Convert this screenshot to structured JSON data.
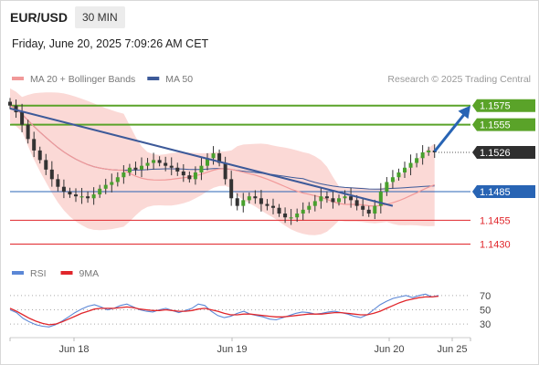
{
  "header": {
    "symbol": "EUR/USD",
    "interval": "30 MIN",
    "datetime": "Friday, June 20, 2025 7:09:26 AM CET"
  },
  "colors": {
    "ma20": "#f19999",
    "ma50": "#3d5a99",
    "band_fill": "#fbd9d6",
    "green": "#5aa329",
    "blue": "#2864b4",
    "red": "#e0262b",
    "rsi": "#5b87d6",
    "rsi_ma": "#e0262b",
    "candle": "#48a02d",
    "candle_dark": "#333333",
    "current": "#2f2f2f"
  },
  "chart_data": [
    {
      "type": "candlestick",
      "title": "",
      "legend": {
        "placement": "top-left",
        "items": [
          {
            "label": "MA 20 + Bollinger Bands",
            "color": "#f19999"
          },
          {
            "label": "MA 50",
            "color": "#3d5a99"
          }
        ]
      },
      "watermark": "Research © 2025 Trading Central",
      "x_ticks": [
        "Jun 18",
        "Jun 19",
        "Jun 20",
        "Jun 25"
      ],
      "ylim": [
        1.142,
        1.159
      ],
      "levels": [
        {
          "label": "1.1575",
          "value": 1.1575,
          "kind": "resistance",
          "color": "#5aa329"
        },
        {
          "label": "1.1555",
          "value": 1.1555,
          "kind": "resistance",
          "color": "#5aa329"
        },
        {
          "label": "1.1526",
          "value": 1.1526,
          "kind": "current",
          "color": "#2f2f2f"
        },
        {
          "label": "1.1485",
          "value": 1.1485,
          "kind": "pivot",
          "color": "#2864b4"
        },
        {
          "label": "1.1455",
          "value": 1.1455,
          "kind": "support",
          "color": "#e0262b"
        },
        {
          "label": "1.1430",
          "value": 1.143,
          "kind": "support",
          "color": "#e0262b"
        }
      ],
      "close_series": [
        1.1575,
        1.1568,
        1.1555,
        1.154,
        1.1528,
        1.1518,
        1.1508,
        1.1498,
        1.149,
        1.1485,
        1.1482,
        1.148,
        1.148,
        1.1478,
        1.1482,
        1.1488,
        1.1492,
        1.1495,
        1.15,
        1.1505,
        1.151,
        1.1508,
        1.1512,
        1.1515,
        1.1518,
        1.1515,
        1.1512,
        1.151,
        1.1506,
        1.1502,
        1.1498,
        1.1505,
        1.1512,
        1.152,
        1.1525,
        1.1515,
        1.1498,
        1.1478,
        1.147,
        1.1476,
        1.148,
        1.1478,
        1.1472,
        1.147,
        1.1468,
        1.1462,
        1.1458,
        1.1458,
        1.1462,
        1.1466,
        1.147,
        1.1475,
        1.148,
        1.1478,
        1.1474,
        1.1478,
        1.148,
        1.1476,
        1.147,
        1.1466,
        1.1462,
        1.147,
        1.1485,
        1.1495,
        1.15,
        1.1505,
        1.151,
        1.1515,
        1.152,
        1.1526,
        1.1528,
        1.1526
      ],
      "trendline": [
        {
          "series_index": 0,
          "value": 1.1572
        },
        {
          "series_index": 64,
          "value": 1.147
        }
      ],
      "forecast_arrow": [
        {
          "series_index": 71,
          "value": 1.1527
        },
        {
          "series_index": 77,
          "value": 1.1575
        }
      ]
    },
    {
      "type": "line",
      "title": "",
      "legend": {
        "placement": "top-left",
        "items": [
          {
            "label": "RSI",
            "color": "#5b87d6"
          },
          {
            "label": "9MA",
            "color": "#e0262b"
          }
        ]
      },
      "y_ticks": [
        "70",
        "50",
        "30"
      ],
      "ylim": [
        20,
        80
      ],
      "series": [
        {
          "name": "RSI",
          "values": [
            50,
            46,
            38,
            33,
            29,
            27,
            26,
            29,
            34,
            40,
            46,
            51,
            55,
            57,
            54,
            50,
            52,
            56,
            58,
            54,
            50,
            48,
            47,
            50,
            52,
            49,
            46,
            49,
            52,
            58,
            56,
            48,
            42,
            39,
            41,
            45,
            48,
            44,
            42,
            40,
            37,
            36,
            39,
            42,
            45,
            47,
            46,
            44,
            45,
            47,
            48,
            46,
            44,
            41,
            39,
            43,
            50,
            57,
            62,
            66,
            68,
            70,
            67,
            70,
            72,
            68,
            70
          ]
        },
        {
          "name": "9MA",
          "values": [
            52,
            48,
            43,
            38,
            34,
            31,
            29,
            30,
            33,
            37,
            41,
            45,
            48,
            51,
            52,
            52,
            52,
            53,
            54,
            53,
            51,
            50,
            49,
            49,
            50,
            49,
            48,
            48,
            49,
            51,
            52,
            50,
            48,
            45,
            43,
            43,
            44,
            44,
            43,
            42,
            41,
            40,
            40,
            41,
            42,
            43,
            44,
            44,
            44,
            45,
            46,
            46,
            45,
            44,
            43,
            43,
            45,
            48,
            52,
            56,
            60,
            63,
            65,
            67,
            68,
            68,
            69
          ]
        }
      ]
    }
  ]
}
